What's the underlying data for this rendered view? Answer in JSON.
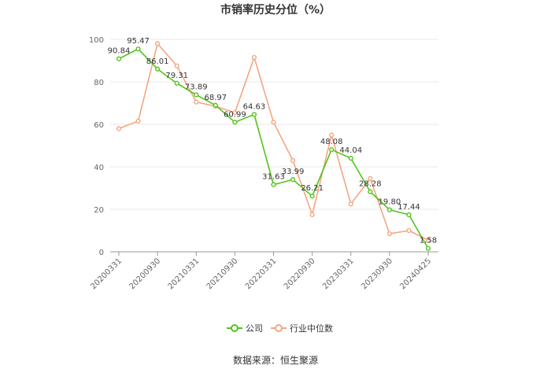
{
  "chart_data": {
    "type": "line",
    "title": "市销率历史分位（%）",
    "source": "数据来源：恒生聚源",
    "xlabel": "",
    "ylabel": "",
    "ylim": [
      0,
      100
    ],
    "yticks": [
      0,
      20,
      40,
      60,
      80,
      100
    ],
    "grid": true,
    "legend_position": "bottom",
    "x_tick_labels": [
      "20200331",
      "20200930",
      "20210331",
      "20210930",
      "20220331",
      "20220930",
      "20230331",
      "20230930",
      "20240425"
    ],
    "series": [
      {
        "name": "公司",
        "color": "#52c41a",
        "values": [
          90.84,
          95.47,
          86.01,
          79.31,
          73.89,
          68.97,
          60.99,
          64.63,
          31.63,
          33.99,
          26.21,
          48.08,
          44.04,
          28.28,
          19.8,
          17.44,
          1.58
        ],
        "labels": [
          "90.84",
          "95.47",
          "86.01",
          "79.31",
          "73.89",
          "68.97",
          "60.99",
          "64.63",
          "31.63",
          "33.99",
          "26.21",
          "48.08",
          "44.04",
          "28.28",
          "19.80",
          "17.44",
          "1.58"
        ]
      },
      {
        "name": "行业中位数",
        "color": "#f4a582",
        "values": [
          58,
          61.5,
          98,
          87.5,
          70.5,
          68.5,
          65.5,
          91.5,
          61,
          43,
          17.5,
          55,
          22.5,
          34.5,
          8.5,
          10,
          5.5
        ]
      }
    ]
  }
}
